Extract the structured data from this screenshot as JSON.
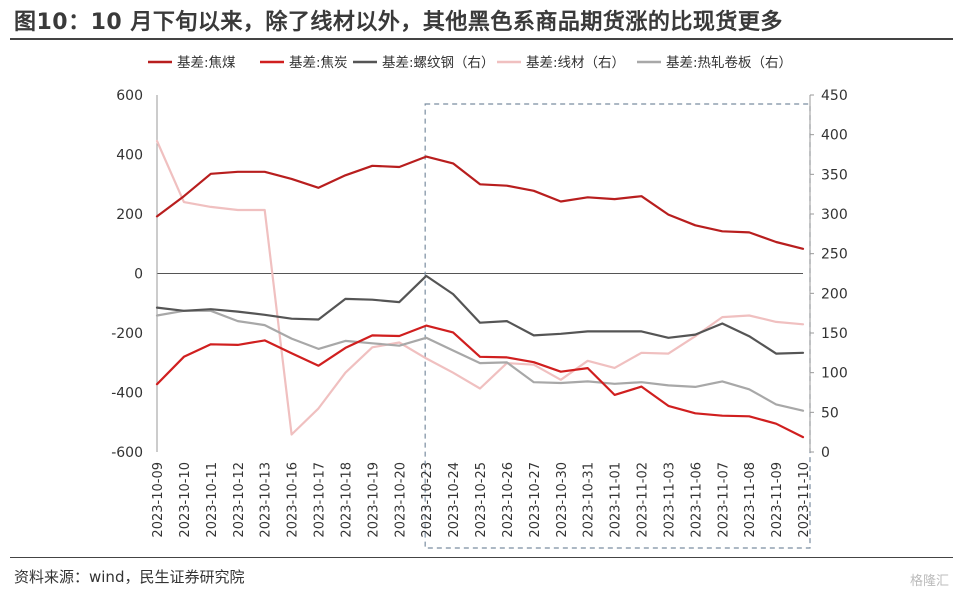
{
  "header": {
    "title": "图10：10 月下旬以来，除了线材以外，其他黑色系商品期货涨的比现货更多"
  },
  "footer": {
    "source": "资料来源：wind，民生证券研究院",
    "watermark": "格隆汇"
  },
  "chart_data": {
    "type": "line",
    "categories": [
      "2023-10-09",
      "2023-10-10",
      "2023-10-11",
      "2023-10-12",
      "2023-10-13",
      "2023-10-16",
      "2023-10-17",
      "2023-10-18",
      "2023-10-19",
      "2023-10-20",
      "2023-10-23",
      "2023-10-24",
      "2023-10-25",
      "2023-10-26",
      "2023-10-27",
      "2023-10-30",
      "2023-10-31",
      "2023-11-01",
      "2023-11-02",
      "2023-11-03",
      "2023-11-06",
      "2023-11-07",
      "2023-11-08",
      "2023-11-09",
      "2023-11-10"
    ],
    "xtick_labels": [
      "2023-10-09",
      "2023-10-10",
      "2023-10-11",
      "2023-10-12",
      "2023-10-13",
      "2023-10-16",
      "2023-10-17",
      "2023-10-18",
      "2023-10-19",
      "2023-10-20",
      "2023-10-23",
      "2023-10-24",
      "2023-10-25",
      "2023-10-26",
      "2023-10-27",
      "2023-10-30",
      "2023-10-31",
      "2023-11-01",
      "2023-11-02",
      "2023-11-03",
      "2023-11-06",
      "2023-11-07",
      "2023-11-08",
      "2023-11-09",
      "2023-11-10"
    ],
    "y_left": {
      "ticks": [
        600,
        400,
        200,
        0,
        -200,
        -400,
        -600
      ],
      "lim": [
        -600,
        600
      ]
    },
    "y_right": {
      "ticks": [
        450,
        400,
        350,
        300,
        250,
        200,
        150,
        100,
        50,
        0
      ],
      "lim": [
        0,
        450
      ]
    },
    "legend_position": "top",
    "highlight_box": {
      "from": "2023-10-23",
      "to": "2023-11-10",
      "style": "dashed",
      "color": "#7a8da0"
    },
    "series": [
      {
        "name": "基差:焦煤",
        "axis": "left",
        "color": "#b81e1e",
        "values": [
          192,
          260,
          335,
          342,
          342,
          318,
          288,
          330,
          362,
          358,
          393,
          370,
          300,
          295,
          278,
          242,
          256,
          250,
          260,
          198,
          162,
          142,
          138,
          106,
          83
        ]
      },
      {
        "name": "基差:焦炭",
        "axis": "left",
        "color": "#d01f1f",
        "values": [
          -372,
          -280,
          -238,
          -240,
          -225,
          -268,
          -310,
          -250,
          -208,
          -210,
          -175,
          -198,
          -280,
          -282,
          -298,
          -330,
          -318,
          -408,
          -380,
          -445,
          -470,
          -478,
          -480,
          -505,
          -550
        ]
      },
      {
        "name": "基差:螺纹钢（右）",
        "axis": "right",
        "color": "#555555",
        "values": [
          182,
          178,
          180,
          177,
          173,
          168,
          167,
          193,
          192,
          189,
          222,
          199,
          163,
          165,
          147,
          149,
          152,
          152,
          152,
          144,
          148,
          162,
          146,
          124,
          125
        ]
      },
      {
        "name": "基差:线材（右）",
        "axis": "right",
        "color": "#f0c0c0",
        "values": [
          392,
          315,
          309,
          305,
          305,
          22,
          55,
          100,
          132,
          138,
          118,
          100,
          80,
          112,
          110,
          91,
          115,
          106,
          125,
          124,
          146,
          170,
          172,
          164,
          161
        ]
      },
      {
        "name": "基差:热轧卷板（右）",
        "axis": "right",
        "color": "#a8a8a8",
        "values": [
          172,
          178,
          178,
          165,
          160,
          143,
          130,
          140,
          137,
          134,
          144,
          128,
          112,
          113,
          88,
          87,
          89,
          86,
          88,
          84,
          82,
          89,
          79,
          60,
          52
        ]
      }
    ]
  }
}
